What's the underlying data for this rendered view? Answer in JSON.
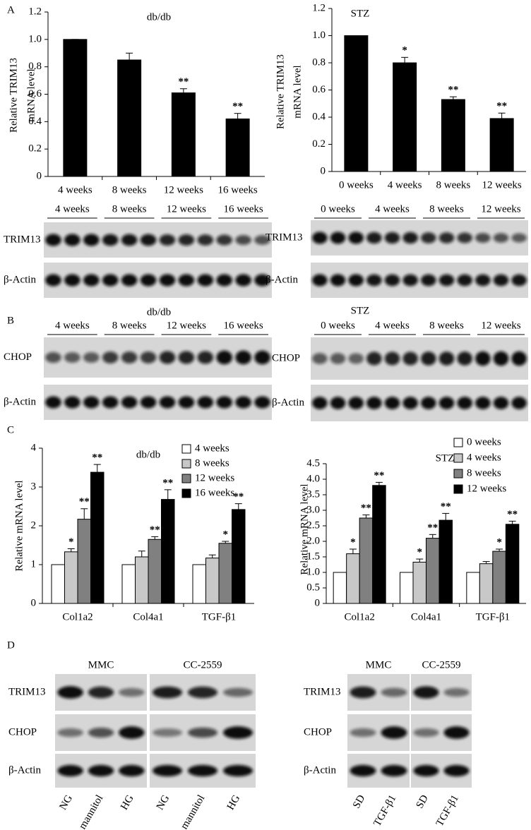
{
  "panel_labels": [
    "A",
    "B",
    "C",
    "D"
  ],
  "chart_data": [
    {
      "type": "bar",
      "title": "db/db",
      "y_label": [
        "Relative TRIM13",
        "mRNA level"
      ],
      "categories": [
        "4 weeks",
        "8 weeks",
        "12 weeks",
        "16 weeks"
      ],
      "series": [
        {
          "color": "#000000",
          "values": [
            1.0,
            0.85,
            0.61,
            0.42
          ],
          "errors": [
            0,
            0.05,
            0.03,
            0.04
          ],
          "annotations": [
            null,
            null,
            "**",
            "**"
          ]
        }
      ],
      "ylim": [
        0,
        1.2
      ],
      "yticks": [
        0,
        0.2,
        0.4,
        0.6,
        0.8,
        {
          "value": 1,
          "label": "1.0"
        },
        1.2
      ]
    },
    {
      "type": "bar",
      "title": "STZ",
      "y_label": [
        "Relative TRIM13",
        "mRNA level"
      ],
      "categories": [
        "0 weeks",
        "4 weeks",
        "8 weeks",
        "12 weeks"
      ],
      "series": [
        {
          "color": "#000000",
          "values": [
            1.0,
            0.8,
            0.53,
            0.39
          ],
          "errors": [
            0,
            0.04,
            0.02,
            0.04
          ],
          "annotations": [
            null,
            "*",
            "**",
            "**"
          ]
        }
      ],
      "ylim": [
        0,
        1.2
      ],
      "yticks": [
        0,
        0.2,
        0.4,
        0.6,
        0.8,
        {
          "value": 1,
          "label": "1.0"
        },
        1.2
      ]
    },
    {
      "type": "bar",
      "title": "db/db",
      "y_label": [
        "Relative mRNA level"
      ],
      "categories": [
        "Col1a2",
        "Col4a1",
        "TGF-β1"
      ],
      "series": [
        {
          "name": "4 weeks",
          "color": "#ffffff",
          "values": [
            1,
            1,
            1
          ],
          "errors": [
            0,
            0,
            0
          ],
          "annotations": [
            null,
            null,
            null
          ]
        },
        {
          "name": "8 weeks",
          "color": "#c8c8c8",
          "values": [
            1.33,
            1.2,
            1.17
          ],
          "errors": [
            0.08,
            0.15,
            0.08
          ],
          "annotations": [
            "*",
            null,
            null
          ]
        },
        {
          "name": "12 weeks",
          "color": "#808080",
          "values": [
            2.17,
            1.65,
            1.55
          ],
          "errors": [
            0.27,
            0.07,
            0.05
          ],
          "annotations": [
            "**",
            "**",
            "*"
          ]
        },
        {
          "name": "16 weeks",
          "color": "#000000",
          "values": [
            3.38,
            2.68,
            2.42
          ],
          "errors": [
            0.2,
            0.25,
            0.15
          ],
          "annotations": [
            "**",
            "**",
            "**"
          ]
        }
      ],
      "ylim": [
        0,
        4
      ],
      "yticks": [
        0,
        1,
        2,
        3,
        4
      ]
    },
    {
      "type": "bar",
      "title": "STZ",
      "y_label": [
        "Relative mRNA level"
      ],
      "categories": [
        "Col1a2",
        "Col4a1",
        "TGF-β1"
      ],
      "series": [
        {
          "name": "0 weeks",
          "color": "#ffffff",
          "values": [
            1,
            1,
            1
          ],
          "errors": [
            0,
            0,
            0
          ],
          "annotations": [
            null,
            null,
            null
          ]
        },
        {
          "name": "4 weeks",
          "color": "#c8c8c8",
          "values": [
            1.6,
            1.33,
            1.28
          ],
          "errors": [
            0.15,
            0.1,
            0.07
          ],
          "annotations": [
            "*",
            "*",
            null
          ]
        },
        {
          "name": "8 weeks",
          "color": "#808080",
          "values": [
            2.75,
            2.1,
            1.68
          ],
          "errors": [
            0.1,
            0.12,
            0.07
          ],
          "annotations": [
            "**",
            "**",
            "*"
          ]
        },
        {
          "name": "12 weeks",
          "color": "#000000",
          "values": [
            3.8,
            2.68,
            2.55
          ],
          "errors": [
            0.1,
            0.22,
            0.1
          ],
          "annotations": [
            "**",
            "**",
            "**"
          ]
        }
      ],
      "ylim": [
        0,
        4.5
      ],
      "yticks": [
        0,
        0.5,
        {
          "value": 1,
          "label": "1.0"
        },
        1.5,
        {
          "value": 2,
          "label": "2.0"
        },
        2.5,
        {
          "value": 3,
          "label": "3.0"
        },
        3.5,
        {
          "value": 4,
          "label": "4.0"
        },
        4.5
      ]
    }
  ],
  "blots": {
    "A": {
      "left": {
        "groups": [
          "4 weeks",
          "8 weeks",
          "12 weeks",
          "16 weeks"
        ],
        "rows": [
          "TRIM13",
          "β-Actin"
        ]
      },
      "right": {
        "groups": [
          "0 weeks",
          "4 weeks",
          "8 weeks",
          "12 weeks"
        ],
        "rows": [
          "TRIM13",
          "β-Actin"
        ]
      }
    },
    "B": {
      "left": {
        "title": "db/db",
        "groups": [
          "4 weeks",
          "8 weeks",
          "12 weeks",
          "16 weeks"
        ],
        "rows": [
          "CHOP",
          "β-Actin"
        ]
      },
      "right": {
        "title": "STZ",
        "groups": [
          "0 weeks",
          "4 weeks",
          "8 weeks",
          "12 weeks"
        ],
        "rows": [
          "CHOP",
          "β-Actin"
        ]
      }
    },
    "D": {
      "left": {
        "groups": [
          "MMC",
          "CC-2559"
        ],
        "rows": [
          "TRIM13",
          "CHOP",
          "β-Actin"
        ],
        "lanes": [
          "NG",
          "mannitol",
          "HG",
          "NG",
          "mannitol",
          "HG"
        ]
      },
      "right": {
        "groups": [
          "MMC",
          "CC-2559"
        ],
        "rows": [
          "TRIM13",
          "CHOP",
          "β-Actin"
        ],
        "lanes": [
          "SD",
          "TGF-β1",
          "SD",
          "TGF-β1"
        ]
      }
    }
  }
}
